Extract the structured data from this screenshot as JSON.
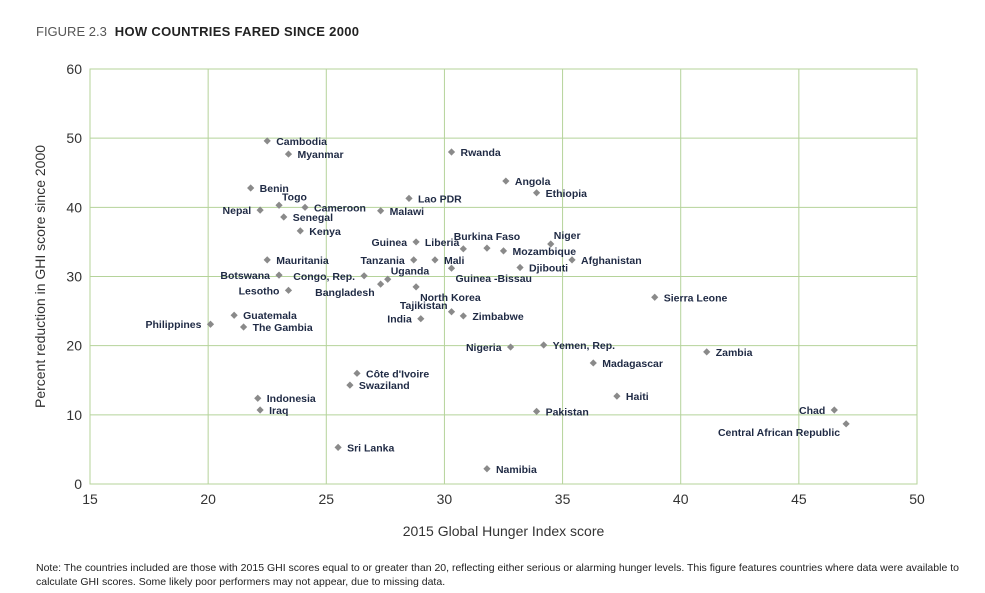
{
  "title": {
    "figure": "FIGURE 2.3",
    "text": "HOW COUNTRIES FARED SINCE 2000"
  },
  "note": "Note: The countries included are those with 2015 GHI scores equal to or greater than 20, reflecting either serious or alarming hunger levels. This figure features countries where data were available to calculate GHI scores. Some likely poor performers may not appear, due to missing data.",
  "chart_data": {
    "type": "scatter",
    "title": "HOW COUNTRIES FARED SINCE 2000",
    "xlabel": "2015 Global Hunger Index score",
    "ylabel": "Percent reduction in GHI score since 2000",
    "xlim": [
      15,
      50
    ],
    "ylim": [
      0,
      60
    ],
    "xticks": [
      15,
      20,
      25,
      30,
      35,
      40,
      45,
      50
    ],
    "yticks": [
      0,
      10,
      20,
      30,
      40,
      50,
      60
    ],
    "grid": true,
    "colors": {
      "grid": "#b5d39a",
      "marker": "#8a8a8a",
      "text": "#1f2a44"
    },
    "points": [
      {
        "name": "Cambodia",
        "x": 22.5,
        "y": 49.6,
        "label": "right"
      },
      {
        "name": "Myanmar",
        "x": 23.4,
        "y": 47.7,
        "label": "right"
      },
      {
        "name": "Rwanda",
        "x": 30.3,
        "y": 48.0,
        "label": "right"
      },
      {
        "name": "Angola",
        "x": 32.6,
        "y": 43.8,
        "label": "right"
      },
      {
        "name": "Ethiopia",
        "x": 33.9,
        "y": 42.1,
        "label": "right"
      },
      {
        "name": "Benin",
        "x": 21.8,
        "y": 42.8,
        "label": "right"
      },
      {
        "name": "Togo",
        "x": 23.0,
        "y": 40.3,
        "label": "top-right"
      },
      {
        "name": "Nepal",
        "x": 22.2,
        "y": 39.6,
        "label": "left"
      },
      {
        "name": "Cameroon",
        "x": 24.1,
        "y": 40.0,
        "label": "right"
      },
      {
        "name": "Senegal",
        "x": 23.2,
        "y": 38.6,
        "label": "right"
      },
      {
        "name": "Kenya",
        "x": 23.9,
        "y": 36.6,
        "label": "right"
      },
      {
        "name": "Lao PDR",
        "x": 28.5,
        "y": 41.3,
        "label": "right"
      },
      {
        "name": "Malawi",
        "x": 27.3,
        "y": 39.5,
        "label": "right"
      },
      {
        "name": "Guinea",
        "x": 28.8,
        "y": 35.0,
        "label": "left"
      },
      {
        "name": "Liberia",
        "x": 30.8,
        "y": 34.0,
        "label": "top-left"
      },
      {
        "name": "Burkina Faso",
        "x": 31.8,
        "y": 34.1,
        "label": "top"
      },
      {
        "name": "Mozambique",
        "x": 32.5,
        "y": 33.7,
        "label": "right"
      },
      {
        "name": "Niger",
        "x": 34.5,
        "y": 34.7,
        "label": "top-right"
      },
      {
        "name": "Afghanistan",
        "x": 35.4,
        "y": 32.4,
        "label": "right"
      },
      {
        "name": "Mauritania",
        "x": 22.5,
        "y": 32.4,
        "label": "right"
      },
      {
        "name": "Tanzania",
        "x": 28.7,
        "y": 32.4,
        "label": "left"
      },
      {
        "name": "Mali",
        "x": 29.6,
        "y": 32.4,
        "label": "right"
      },
      {
        "name": "Guinea -Bissau",
        "x": 30.3,
        "y": 31.2,
        "label": "bottom-right"
      },
      {
        "name": "Djibouti",
        "x": 33.2,
        "y": 31.3,
        "label": "right"
      },
      {
        "name": "Botswana",
        "x": 23.0,
        "y": 30.2,
        "label": "left"
      },
      {
        "name": "Congo, Rep.",
        "x": 26.6,
        "y": 30.1,
        "label": "left"
      },
      {
        "name": "Uganda",
        "x": 27.6,
        "y": 29.6,
        "label": "top-right"
      },
      {
        "name": "Bangladesh",
        "x": 27.3,
        "y": 28.9,
        "label": "bottom-left"
      },
      {
        "name": "North Korea",
        "x": 28.8,
        "y": 28.5,
        "label": "bottom-right"
      },
      {
        "name": "Lesotho",
        "x": 23.4,
        "y": 28.0,
        "label": "left"
      },
      {
        "name": "Sierra Leone",
        "x": 38.9,
        "y": 27.0,
        "label": "right"
      },
      {
        "name": "Tajikistan",
        "x": 30.3,
        "y": 24.9,
        "label": "top-left"
      },
      {
        "name": "Zimbabwe",
        "x": 30.8,
        "y": 24.3,
        "label": "right"
      },
      {
        "name": "India",
        "x": 29.0,
        "y": 23.9,
        "label": "left"
      },
      {
        "name": "Guatemala",
        "x": 21.1,
        "y": 24.4,
        "label": "right"
      },
      {
        "name": "Philippines",
        "x": 20.1,
        "y": 23.1,
        "label": "left"
      },
      {
        "name": "The Gambia",
        "x": 21.5,
        "y": 22.7,
        "label": "right"
      },
      {
        "name": "Nigeria",
        "x": 32.8,
        "y": 19.8,
        "label": "left"
      },
      {
        "name": "Yemen, Rep.",
        "x": 34.2,
        "y": 20.1,
        "label": "right"
      },
      {
        "name": "Zambia",
        "x": 41.1,
        "y": 19.1,
        "label": "right"
      },
      {
        "name": "Madagascar",
        "x": 36.3,
        "y": 17.5,
        "label": "right"
      },
      {
        "name": "Côte d'Ivoire",
        "x": 26.3,
        "y": 16.0,
        "label": "right"
      },
      {
        "name": "Swaziland",
        "x": 26.0,
        "y": 14.3,
        "label": "right"
      },
      {
        "name": "Haiti",
        "x": 37.3,
        "y": 12.7,
        "label": "right"
      },
      {
        "name": "Indonesia",
        "x": 22.1,
        "y": 12.4,
        "label": "right"
      },
      {
        "name": "Iraq",
        "x": 22.2,
        "y": 10.7,
        "label": "right"
      },
      {
        "name": "Pakistan",
        "x": 33.9,
        "y": 10.5,
        "label": "right"
      },
      {
        "name": "Chad",
        "x": 46.5,
        "y": 10.7,
        "label": "left"
      },
      {
        "name": "Central African Republic",
        "x": 47.0,
        "y": 8.7,
        "label": "bottom-left"
      },
      {
        "name": "Sri Lanka",
        "x": 25.5,
        "y": 5.3,
        "label": "right"
      },
      {
        "name": "Namibia",
        "x": 31.8,
        "y": 2.2,
        "label": "right"
      }
    ]
  }
}
